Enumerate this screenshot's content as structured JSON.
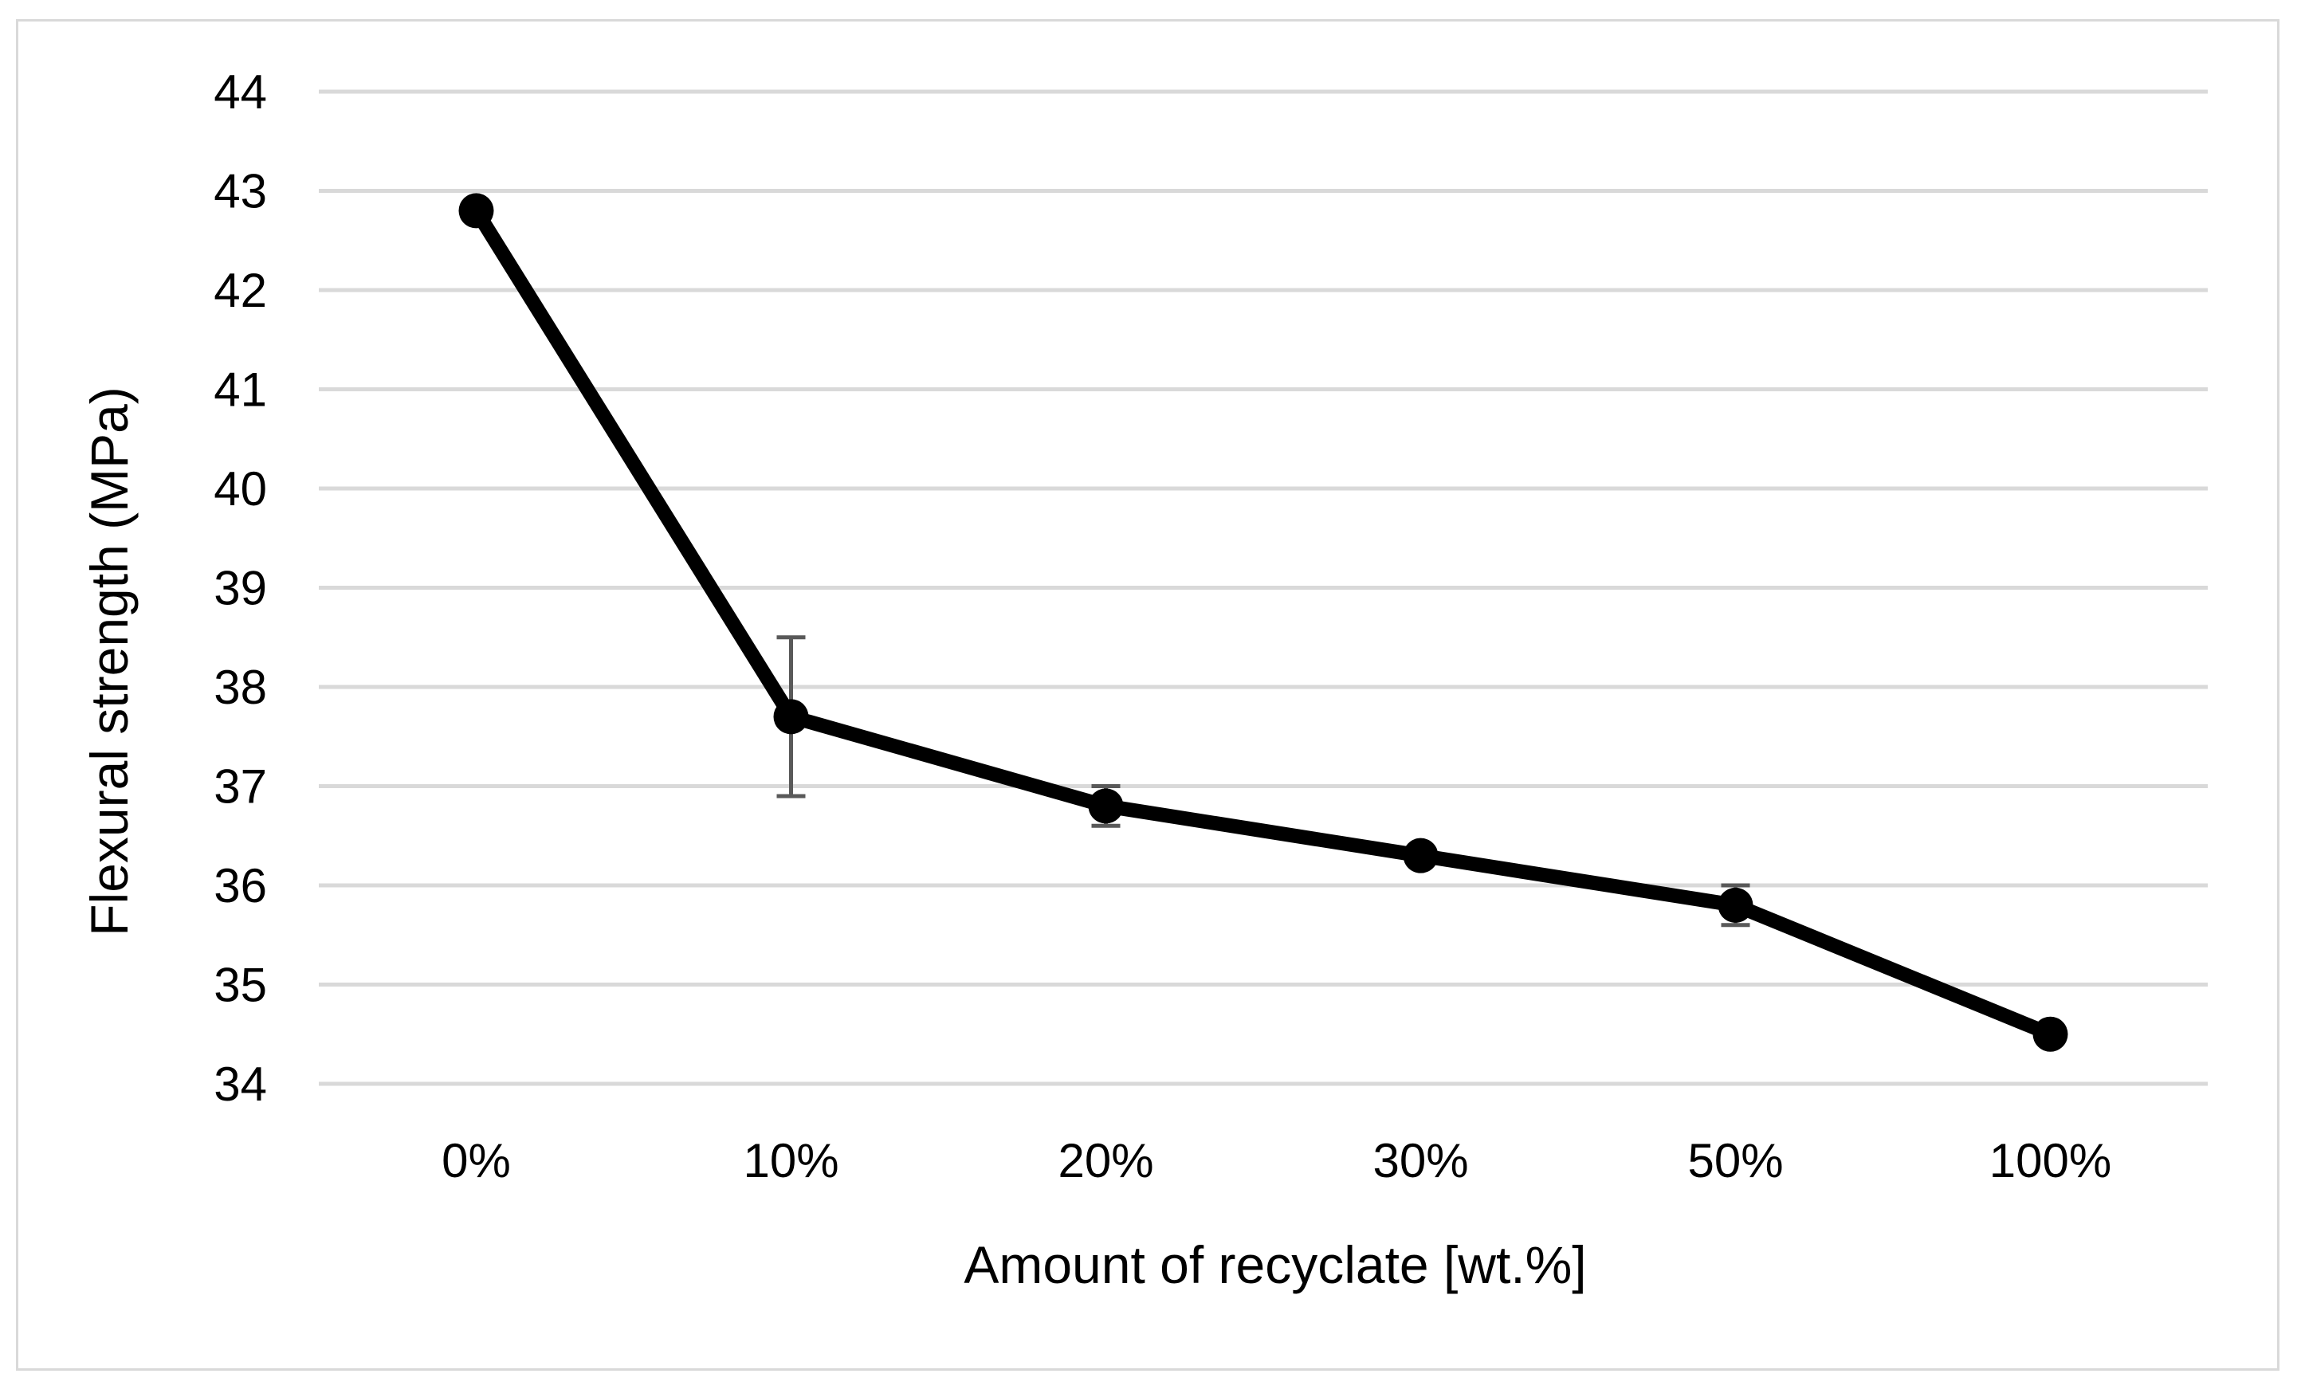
{
  "chart_data": {
    "type": "line",
    "title": "",
    "xlabel": "Amount of recyclate [wt.%]",
    "ylabel": "Flexural strength (MPa)",
    "categories": [
      "0%",
      "10%",
      "20%",
      "30%",
      "50%",
      "100%"
    ],
    "series": [
      {
        "values": [
          42.8,
          37.7,
          36.8,
          36.3,
          35.8,
          34.5
        ],
        "error": [
          0,
          0.8,
          0.2,
          0.05,
          0.2,
          0.05
        ]
      }
    ],
    "ylim": [
      34,
      44
    ],
    "yticks": [
      34,
      35,
      36,
      37,
      38,
      39,
      40,
      41,
      42,
      43,
      44
    ],
    "grid": true,
    "legend": "none"
  },
  "colors": {
    "line": "#000000",
    "grid": "#d9d9d9",
    "errorbar": "#595959",
    "frame": "#d9d9d9"
  }
}
